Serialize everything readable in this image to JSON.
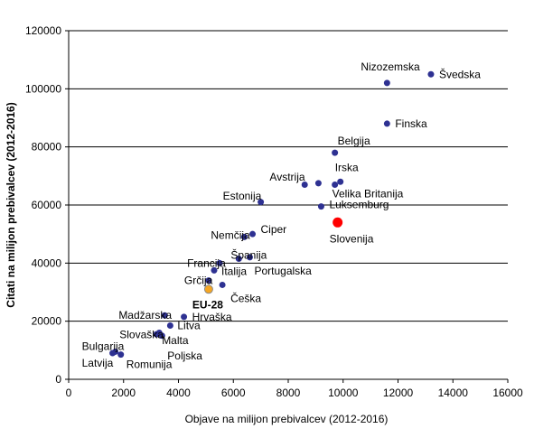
{
  "chart_data": {
    "type": "scatter",
    "title": "",
    "xlabel": "Objave na milijon prebivalcev (2012-2016)",
    "ylabel": "Citati na milijon prebivalcev (2012-2016)",
    "xlim": [
      0,
      16000
    ],
    "ylim": [
      0,
      120000
    ],
    "xticks": [
      0,
      2000,
      4000,
      6000,
      8000,
      10000,
      12000,
      14000,
      16000
    ],
    "yticks": [
      0,
      20000,
      40000,
      60000,
      80000,
      100000,
      120000
    ],
    "x_tick_labels": [
      "0",
      "2000",
      "4000",
      "6000",
      "8000",
      "10000",
      "12000",
      "14000",
      "16000"
    ],
    "y_tick_labels": [
      "0",
      "20000",
      "40000",
      "60000",
      "80000",
      "100000",
      "120000"
    ],
    "grid": "horizontal",
    "colors": {
      "default": "#2e3192",
      "highlight": "#ff0000",
      "eu": "#f5a623",
      "grid": "#000000"
    },
    "points": [
      {
        "label": "Nizozemska",
        "x": 11600,
        "y": 102000
      },
      {
        "label": "Švedska",
        "x": 13200,
        "y": 105000
      },
      {
        "label": "Finska",
        "x": 11600,
        "y": 88000
      },
      {
        "label": "Belgija",
        "x": 9700,
        "y": 78000
      },
      {
        "label": "Irska",
        "x": 9900,
        "y": 68000
      },
      {
        "label": "Avstrija",
        "x": 9100,
        "y": 67500
      },
      {
        "label": "",
        "x": 8600,
        "y": 67000
      },
      {
        "label": "Velika Britanija",
        "x": 9700,
        "y": 67000
      },
      {
        "label": "Estonija",
        "x": 7000,
        "y": 61000
      },
      {
        "label": "Luksemburg",
        "x": 9200,
        "y": 59500
      },
      {
        "label": "Slovenija",
        "x": 9800,
        "y": 54000,
        "highlight": true
      },
      {
        "label": "Ciper",
        "x": 6700,
        "y": 50000
      },
      {
        "label": "Nemčija",
        "x": 6400,
        "y": 49000
      },
      {
        "label": "Španija",
        "x": 6200,
        "y": 41500
      },
      {
        "label": "Portugalska",
        "x": 6600,
        "y": 42000
      },
      {
        "label": "Francija",
        "x": 5500,
        "y": 40000
      },
      {
        "label": "Italija",
        "x": 5300,
        "y": 37500
      },
      {
        "label": "Grčija",
        "x": 5100,
        "y": 34000
      },
      {
        "label": "Češka",
        "x": 5600,
        "y": 32500
      },
      {
        "label": "EU-28",
        "x": 5100,
        "y": 31000,
        "eu": true
      },
      {
        "label": "Madžarska",
        "x": 3500,
        "y": 22000
      },
      {
        "label": "Hrvaška",
        "x": 4200,
        "y": 21500
      },
      {
        "label": "Litva",
        "x": 3700,
        "y": 18500
      },
      {
        "label": "Slovaška",
        "x": 3300,
        "y": 16000
      },
      {
        "label": "Malta",
        "x": 3200,
        "y": 15500
      },
      {
        "label": "Poljska",
        "x": 3400,
        "y": 15000
      },
      {
        "label": "Bulgarija",
        "x": 1700,
        "y": 9500
      },
      {
        "label": "Latvija",
        "x": 1600,
        "y": 9000
      },
      {
        "label": "Romunija",
        "x": 1900,
        "y": 8500
      }
    ]
  }
}
